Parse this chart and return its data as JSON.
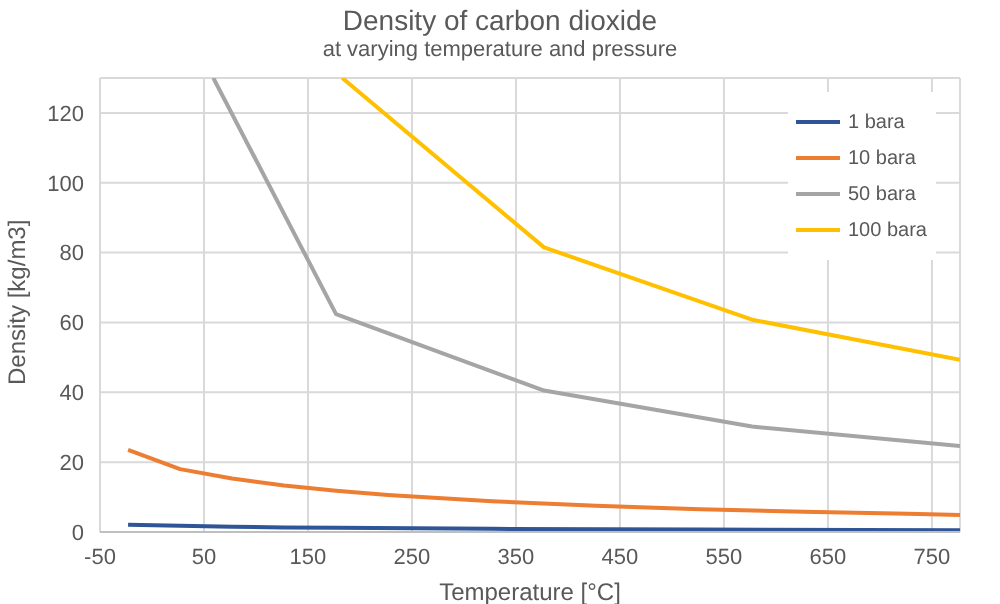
{
  "chart_data": {
    "type": "line",
    "title": "Density of carbon dioxide",
    "subtitle": "at varying temperature and pressure",
    "xlabel": "Temperature [°C]",
    "ylabel": "Density [kg/m3]",
    "xlim": [
      -50,
      777
    ],
    "xticks": [
      -50,
      50,
      150,
      250,
      350,
      450,
      550,
      650,
      750
    ],
    "ylim": [
      0,
      130
    ],
    "yticks": [
      0,
      20,
      40,
      60,
      80,
      100,
      120
    ],
    "grid": true,
    "legend": "top right",
    "marker": "none",
    "line_style": "solid",
    "series": [
      {
        "name": "1 bara",
        "color": "#2f5597",
        "x": [
          -23,
          27,
          77,
          127,
          177,
          327,
          527,
          777
        ],
        "values": [
          2.1,
          1.8,
          1.5,
          1.3,
          1.2,
          0.9,
          0.7,
          0.5
        ]
      },
      {
        "name": "10 bara",
        "color": "#ed7d31",
        "x": [
          -23,
          27,
          77,
          127,
          177,
          227,
          327,
          427,
          527,
          627,
          727,
          777
        ],
        "values": [
          23.5,
          18,
          15.3,
          13.3,
          11.8,
          10.6,
          8.8,
          7.5,
          6.5,
          5.8,
          5.2,
          4.9
        ]
      },
      {
        "name": "50 bara",
        "color": "#a5a5a5",
        "x": [
          59,
          177,
          377,
          577,
          777
        ],
        "values": [
          130,
          62.4,
          40.5,
          30.2,
          24.6
        ]
      },
      {
        "name": "100 bara",
        "color": "#ffc000",
        "x": [
          183,
          377,
          577,
          777
        ],
        "values": [
          130,
          81.5,
          60.8,
          49.3
        ]
      }
    ]
  }
}
